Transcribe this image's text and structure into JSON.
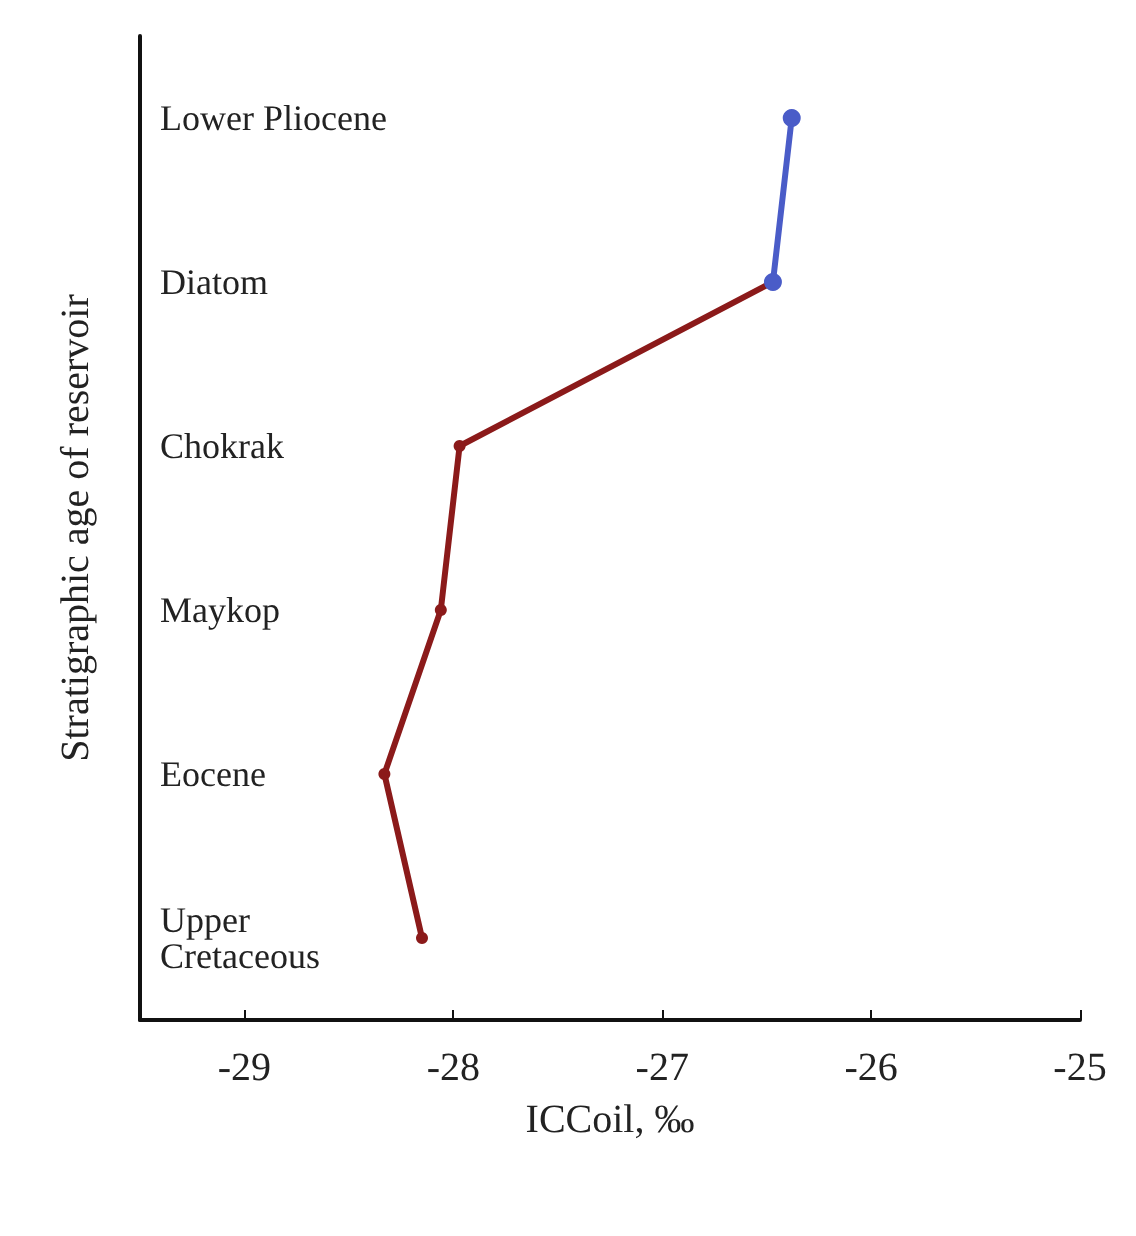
{
  "chart_data": {
    "type": "line",
    "orientation": "horizontal",
    "xlabel": "ICCoil, ‰",
    "ylabel": "Stratigraphic age of reservoir",
    "categories": [
      "Lower Pliocene",
      "Diatom",
      "Chokrak",
      "Maykop",
      "Eocene",
      "Upper Cretaceous"
    ],
    "series": [
      {
        "color": "#4a5cc8",
        "values": [
          -26.38,
          -26.47,
          null,
          null,
          null,
          null
        ]
      },
      {
        "color": "#8b1a1a",
        "values": [
          null,
          -26.47,
          -27.97,
          -28.06,
          -28.33,
          -28.15
        ]
      }
    ],
    "xlim": [
      -29.5,
      -25
    ],
    "xticks": [
      -29,
      -28,
      -27,
      -26,
      -25
    ],
    "grid": false,
    "marker": "circle",
    "line_style": "solid"
  }
}
